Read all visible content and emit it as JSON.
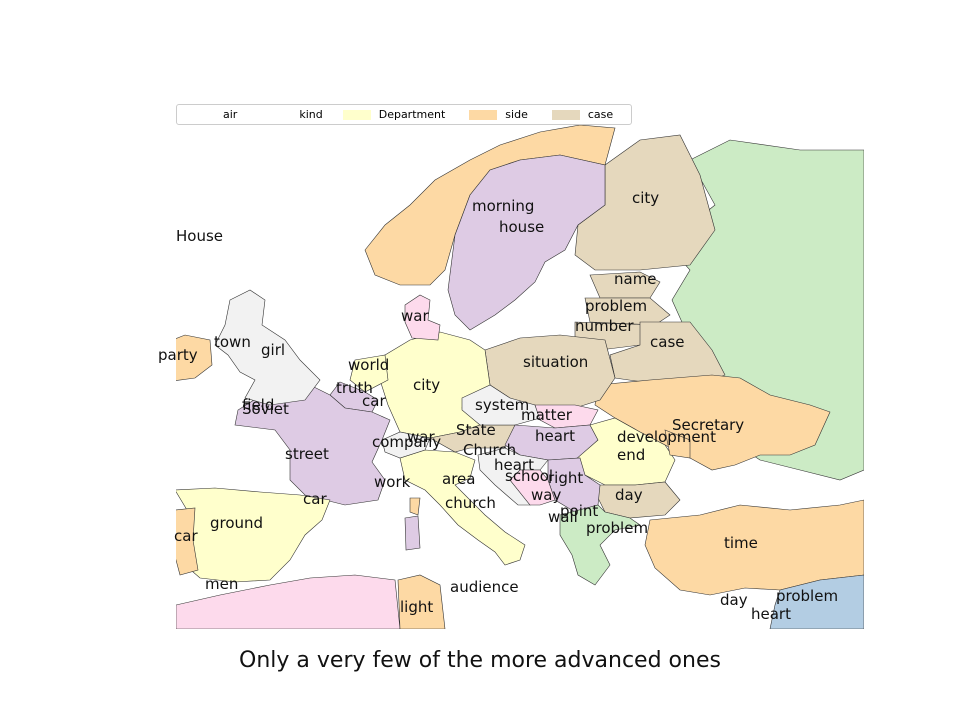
{
  "legend": [
    {
      "label": "air",
      "color": "#ffffff"
    },
    {
      "label": "kind",
      "color": "#ffffff"
    },
    {
      "label": "Department",
      "color": "#ffffcc"
    },
    {
      "label": "side",
      "color": "#fdd9a4"
    },
    {
      "label": "case",
      "color": "#e5d8bd"
    }
  ],
  "caption": "Only a very few of the more advanced ones",
  "regions": [
    {
      "name": "russia",
      "color": "#ccebc5"
    },
    {
      "name": "finland",
      "color": "#e5d8bd"
    },
    {
      "name": "norway",
      "color": "#fdd9a4"
    },
    {
      "name": "sweden",
      "color": "#decbe4"
    },
    {
      "name": "baltic-estonia",
      "color": "#e5d8bd"
    },
    {
      "name": "baltic-latvia",
      "color": "#e5d8bd"
    },
    {
      "name": "baltic-lithuania",
      "color": "#e5d8bd"
    },
    {
      "name": "belarus",
      "color": "#e5d8bd"
    },
    {
      "name": "ukraine",
      "color": "#fdd9a4"
    },
    {
      "name": "poland",
      "color": "#e5d8bd"
    },
    {
      "name": "germany",
      "color": "#ffffcc"
    },
    {
      "name": "denmark",
      "color": "#fddaec"
    },
    {
      "name": "netherlands",
      "color": "#ffffcc"
    },
    {
      "name": "belgium",
      "color": "#decbe4"
    },
    {
      "name": "france",
      "color": "#decbe4"
    },
    {
      "name": "uk",
      "color": "#f2f2f2"
    },
    {
      "name": "ireland",
      "color": "#fdd9a4"
    },
    {
      "name": "spain",
      "color": "#ffffcc"
    },
    {
      "name": "portugal",
      "color": "#fdd9a4"
    },
    {
      "name": "italy",
      "color": "#ffffcc"
    },
    {
      "name": "switzerland",
      "color": "#f2f2f2"
    },
    {
      "name": "austria",
      "color": "#e5d8bd"
    },
    {
      "name": "czech",
      "color": "#f2f2f2"
    },
    {
      "name": "slovakia",
      "color": "#fddaec"
    },
    {
      "name": "hungary",
      "color": "#decbe4"
    },
    {
      "name": "romania",
      "color": "#ffffcc"
    },
    {
      "name": "moldova",
      "color": "#fdd9a4"
    },
    {
      "name": "bulgaria",
      "color": "#e5d8bd"
    },
    {
      "name": "serbia",
      "color": "#decbe4"
    },
    {
      "name": "croatia",
      "color": "#f2f2f2"
    },
    {
      "name": "bosnia",
      "color": "#fddaec"
    },
    {
      "name": "greece",
      "color": "#ccebc5"
    },
    {
      "name": "turkey",
      "color": "#fdd9a4"
    },
    {
      "name": "north-africa-west",
      "color": "#fddaec"
    },
    {
      "name": "tunisia",
      "color": "#fdd9a4"
    },
    {
      "name": "syria-iraq",
      "color": "#b3cde3"
    },
    {
      "name": "sardinia",
      "color": "#decbe4"
    },
    {
      "name": "corsica",
      "color": "#fdd9a4"
    }
  ],
  "labels": [
    {
      "text": "House"
    },
    {
      "text": "morning"
    },
    {
      "text": "house"
    },
    {
      "text": "city"
    },
    {
      "text": "name"
    },
    {
      "text": "problem"
    },
    {
      "text": "number"
    },
    {
      "text": "case"
    },
    {
      "text": "war"
    },
    {
      "text": "town"
    },
    {
      "text": "girl"
    },
    {
      "text": "party"
    },
    {
      "text": "world"
    },
    {
      "text": "truth"
    },
    {
      "text": "city"
    },
    {
      "text": "situation"
    },
    {
      "text": "car"
    },
    {
      "text": "field"
    },
    {
      "text": "Soviet"
    },
    {
      "text": "system"
    },
    {
      "text": "matter"
    },
    {
      "text": "Secretary"
    },
    {
      "text": "heart"
    },
    {
      "text": "development"
    },
    {
      "text": "State"
    },
    {
      "text": "war"
    },
    {
      "text": "company"
    },
    {
      "text": "Church"
    },
    {
      "text": "end"
    },
    {
      "text": "street"
    },
    {
      "text": "heart"
    },
    {
      "text": "school"
    },
    {
      "text": "right"
    },
    {
      "text": "work"
    },
    {
      "text": "area"
    },
    {
      "text": "day"
    },
    {
      "text": "way"
    },
    {
      "text": "car"
    },
    {
      "text": "church"
    },
    {
      "text": "point"
    },
    {
      "text": "wall"
    },
    {
      "text": "ground"
    },
    {
      "text": "problem"
    },
    {
      "text": "car"
    },
    {
      "text": "time"
    },
    {
      "text": "men"
    },
    {
      "text": "audience"
    },
    {
      "text": "day"
    },
    {
      "text": "problem"
    },
    {
      "text": "light"
    },
    {
      "text": "heart"
    }
  ]
}
